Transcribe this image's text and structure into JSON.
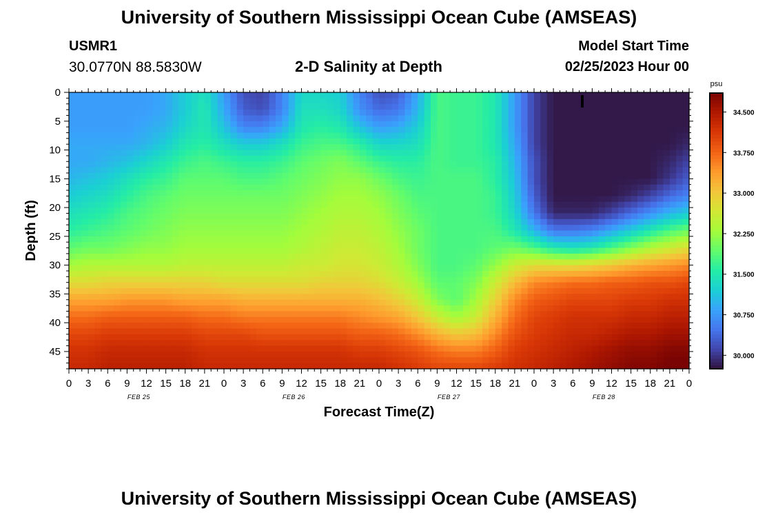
{
  "header": {
    "title": "University of Southern Mississippi Ocean Cube (AMSEAS)",
    "station": "USMR1",
    "coordinates": "30.0770N  88.5830W",
    "subtitle": "2-D Salinity at Depth",
    "model_start_label": "Model Start Time",
    "model_start_value": "02/25/2023 Hour 00"
  },
  "footer": {
    "title": "University of Southern Mississippi Ocean Cube (AMSEAS)"
  },
  "chart_data": {
    "type": "heatmap",
    "title": "2-D Salinity at Depth",
    "xlabel": "Forecast Time(Z)",
    "ylabel": "Depth (ft)",
    "x_range_hours": [
      0,
      96
    ],
    "y_range_ft": [
      0,
      48
    ],
    "x_tick_labels": [
      "0",
      "3",
      "6",
      "9",
      "12",
      "15",
      "18",
      "21",
      "0",
      "3",
      "6",
      "9",
      "12",
      "15",
      "18",
      "21",
      "0",
      "3",
      "6",
      "9",
      "12",
      "15",
      "18",
      "21",
      "0",
      "3",
      "6",
      "9",
      "12",
      "15",
      "18",
      "21",
      "0"
    ],
    "y_tick_labels": [
      "0",
      "5",
      "10",
      "15",
      "20",
      "25",
      "30",
      "35",
      "40",
      "45"
    ],
    "y_tick_values": [
      0,
      5,
      10,
      15,
      20,
      25,
      30,
      35,
      40,
      45
    ],
    "date_labels": [
      {
        "label": "FEB 25",
        "hour": 10.5
      },
      {
        "label": "FEB 26",
        "hour": 34.5
      },
      {
        "label": "FEB 27",
        "hour": 58.5
      },
      {
        "label": "FEB 28",
        "hour": 82.5
      }
    ],
    "colorbar": {
      "unit": "psu",
      "min": 29.75,
      "max": 34.85,
      "tick_labels": [
        "30.000",
        "30.750",
        "31.500",
        "32.250",
        "33.000",
        "33.750",
        "34.500"
      ],
      "tick_values": [
        30.0,
        30.75,
        31.5,
        32.25,
        33.0,
        33.75,
        34.5
      ],
      "colors": [
        "#30123b",
        "#4145ab",
        "#4675ed",
        "#39a2fc",
        "#1bcfd4",
        "#24eca6",
        "#61fc6c",
        "#a4fc3b",
        "#d1e834",
        "#f3c63a",
        "#fe9b2d",
        "#f36315",
        "#d93806",
        "#b11901",
        "#7a0403"
      ]
    },
    "depth_levels_ft": [
      0,
      3,
      6,
      9,
      12,
      15,
      18,
      21,
      24,
      27,
      30,
      33,
      36,
      39,
      42,
      45,
      48
    ],
    "times_h": [
      0,
      3,
      6,
      9,
      12,
      15,
      18,
      21,
      24,
      27,
      30,
      33,
      36,
      39,
      42,
      45,
      48,
      51,
      54,
      57,
      60,
      63,
      66,
      69,
      72,
      75,
      78,
      81,
      84,
      87,
      90,
      93,
      96
    ],
    "salinity_psu": [
      [
        30.8,
        30.8,
        30.8,
        30.8,
        30.8,
        30.9,
        31.2,
        31.4,
        30.8,
        30.2,
        30.1,
        30.6,
        31.3,
        31.3,
        31.2,
        30.6,
        30.2,
        30.3,
        30.9,
        31.8,
        31.7,
        31.7,
        31.5,
        30.8,
        30.1,
        29.8,
        29.8,
        29.8,
        29.8,
        29.8,
        29.8,
        29.8,
        29.8
      ],
      [
        30.8,
        30.8,
        30.8,
        30.8,
        30.8,
        30.9,
        31.2,
        31.5,
        30.9,
        30.3,
        30.2,
        30.6,
        31.4,
        31.4,
        31.3,
        30.7,
        30.4,
        30.5,
        31.0,
        31.8,
        31.7,
        31.7,
        31.5,
        30.8,
        30.1,
        29.8,
        29.8,
        29.8,
        29.8,
        29.8,
        29.8,
        29.8,
        29.8
      ],
      [
        30.8,
        30.8,
        30.8,
        30.8,
        30.9,
        31.0,
        31.3,
        31.5,
        31.1,
        30.6,
        30.6,
        30.9,
        31.5,
        31.6,
        31.5,
        31.1,
        30.8,
        30.9,
        31.2,
        31.8,
        31.7,
        31.7,
        31.5,
        30.8,
        30.1,
        29.8,
        29.8,
        29.8,
        29.8,
        29.8,
        29.8,
        29.8,
        29.8
      ],
      [
        30.9,
        30.9,
        30.9,
        30.9,
        31.0,
        31.2,
        31.5,
        31.6,
        31.4,
        31.2,
        31.2,
        31.4,
        31.7,
        31.8,
        31.8,
        31.6,
        31.3,
        31.3,
        31.4,
        31.8,
        31.7,
        31.7,
        31.5,
        30.9,
        30.1,
        29.8,
        29.8,
        29.8,
        29.8,
        29.8,
        29.8,
        29.8,
        29.9
      ],
      [
        30.9,
        30.9,
        31.0,
        31.1,
        31.3,
        31.5,
        31.7,
        31.8,
        31.7,
        31.6,
        31.6,
        31.7,
        31.9,
        32.0,
        32.1,
        31.9,
        31.7,
        31.6,
        31.6,
        31.8,
        31.7,
        31.7,
        31.6,
        31.0,
        30.2,
        29.8,
        29.8,
        29.8,
        29.8,
        29.8,
        29.8,
        29.9,
        30.1
      ],
      [
        31.0,
        31.1,
        31.2,
        31.4,
        31.6,
        31.7,
        31.9,
        31.9,
        31.9,
        31.8,
        31.8,
        31.9,
        32.0,
        32.1,
        32.2,
        32.2,
        32.0,
        31.8,
        31.7,
        31.8,
        31.8,
        31.8,
        31.6,
        31.1,
        30.2,
        29.8,
        29.8,
        29.8,
        29.8,
        29.8,
        29.8,
        30.0,
        30.3
      ],
      [
        31.2,
        31.3,
        31.4,
        31.6,
        31.8,
        31.9,
        32.0,
        32.0,
        32.0,
        32.0,
        32.0,
        32.0,
        32.1,
        32.2,
        32.3,
        32.3,
        32.2,
        32.0,
        31.8,
        31.8,
        31.8,
        31.8,
        31.7,
        31.2,
        30.3,
        29.8,
        29.8,
        29.8,
        29.8,
        29.9,
        30.1,
        30.4,
        30.6
      ],
      [
        31.4,
        31.5,
        31.6,
        31.8,
        31.9,
        32.0,
        32.1,
        32.1,
        32.1,
        32.1,
        32.1,
        32.1,
        32.2,
        32.3,
        32.4,
        32.4,
        32.3,
        32.1,
        31.9,
        31.8,
        31.8,
        31.8,
        31.7,
        31.3,
        30.5,
        29.9,
        29.9,
        29.9,
        30.1,
        30.4,
        30.7,
        31.0,
        31.2
      ],
      [
        31.6,
        31.7,
        31.8,
        31.9,
        32.0,
        32.1,
        32.2,
        32.2,
        32.2,
        32.2,
        32.2,
        32.2,
        32.3,
        32.4,
        32.5,
        32.5,
        32.4,
        32.2,
        32.0,
        31.8,
        31.8,
        31.8,
        31.8,
        31.5,
        31.0,
        30.5,
        30.5,
        30.6,
        30.9,
        31.2,
        31.5,
        31.8,
        32.0
      ],
      [
        31.9,
        32.0,
        32.0,
        32.1,
        32.2,
        32.2,
        32.3,
        32.3,
        32.3,
        32.3,
        32.3,
        32.3,
        32.4,
        32.5,
        32.6,
        32.6,
        32.5,
        32.3,
        32.0,
        31.8,
        31.8,
        31.8,
        31.9,
        32.0,
        31.8,
        31.5,
        31.4,
        31.5,
        31.8,
        32.1,
        32.4,
        32.6,
        32.8
      ],
      [
        32.3,
        32.4,
        32.4,
        32.4,
        32.4,
        32.4,
        32.5,
        32.5,
        32.5,
        32.5,
        32.5,
        32.5,
        32.6,
        32.6,
        32.7,
        32.7,
        32.6,
        32.4,
        32.1,
        31.8,
        31.8,
        31.9,
        32.2,
        32.6,
        32.8,
        32.8,
        32.8,
        32.9,
        33.0,
        33.2,
        33.3,
        33.4,
        33.5
      ],
      [
        32.8,
        32.8,
        32.9,
        32.9,
        32.9,
        32.9,
        32.9,
        32.9,
        32.8,
        32.8,
        32.8,
        32.8,
        32.8,
        32.9,
        32.9,
        32.9,
        32.8,
        32.6,
        32.3,
        31.9,
        31.9,
        32.1,
        32.6,
        33.1,
        33.5,
        33.6,
        33.7,
        33.7,
        33.8,
        33.8,
        33.9,
        33.9,
        34.0
      ],
      [
        33.3,
        33.3,
        33.3,
        33.4,
        33.4,
        33.4,
        33.3,
        33.3,
        33.3,
        33.2,
        33.2,
        33.2,
        33.2,
        33.2,
        33.2,
        33.2,
        33.1,
        32.9,
        32.6,
        32.1,
        31.9,
        32.3,
        32.9,
        33.5,
        33.8,
        33.9,
        34.0,
        34.0,
        34.0,
        34.1,
        34.1,
        34.2,
        34.2
      ],
      [
        33.7,
        33.7,
        33.8,
        33.8,
        33.8,
        33.8,
        33.8,
        33.7,
        33.7,
        33.6,
        33.6,
        33.6,
        33.6,
        33.6,
        33.6,
        33.5,
        33.4,
        33.3,
        33.0,
        32.6,
        32.3,
        32.6,
        33.2,
        33.7,
        34.0,
        34.1,
        34.2,
        34.2,
        34.2,
        34.3,
        34.3,
        34.4,
        34.4
      ],
      [
        34.0,
        34.0,
        34.1,
        34.1,
        34.1,
        34.1,
        34.1,
        34.0,
        34.0,
        34.0,
        33.9,
        33.9,
        33.9,
        33.9,
        33.9,
        33.8,
        33.8,
        33.7,
        33.5,
        33.2,
        33.0,
        33.1,
        33.5,
        33.9,
        34.1,
        34.2,
        34.3,
        34.3,
        34.4,
        34.5,
        34.5,
        34.6,
        34.6
      ],
      [
        34.2,
        34.2,
        34.3,
        34.3,
        34.3,
        34.3,
        34.3,
        34.2,
        34.2,
        34.2,
        34.2,
        34.2,
        34.2,
        34.2,
        34.2,
        34.1,
        34.1,
        34.0,
        33.9,
        33.7,
        33.6,
        33.6,
        33.8,
        34.1,
        34.2,
        34.3,
        34.4,
        34.5,
        34.6,
        34.7,
        34.7,
        34.8,
        34.8
      ],
      [
        34.3,
        34.3,
        34.4,
        34.4,
        34.4,
        34.4,
        34.4,
        34.3,
        34.3,
        34.3,
        34.3,
        34.3,
        34.3,
        34.3,
        34.3,
        34.3,
        34.3,
        34.2,
        34.1,
        34.0,
        34.0,
        34.0,
        34.1,
        34.2,
        34.3,
        34.4,
        34.5,
        34.6,
        34.7,
        34.8,
        34.8,
        34.9,
        34.9
      ]
    ]
  }
}
